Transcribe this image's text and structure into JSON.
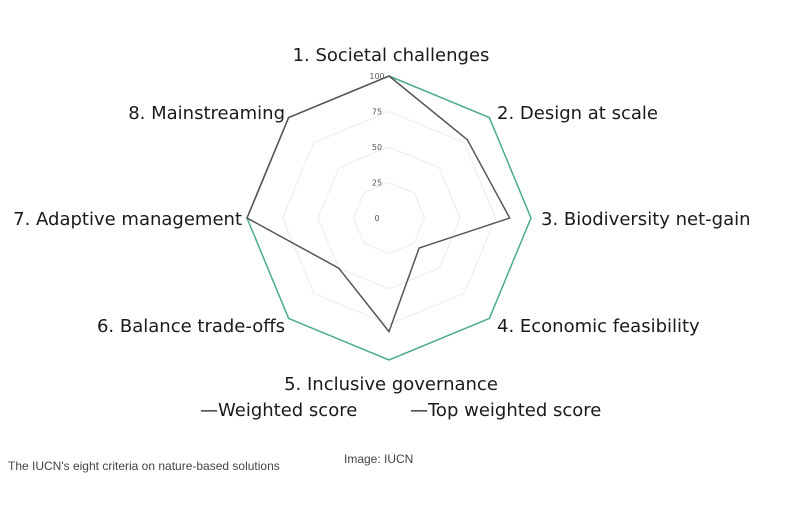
{
  "chart_data": {
    "type": "radar",
    "categories": [
      "1. Societal challenges",
      "2. Design at scale",
      "3. Biodiversity net-gain",
      "4. Economic feasibility",
      "5. Inclusive governance",
      "6. Balance trade-offs",
      "7. Adaptive management",
      "8. Mainstreaming"
    ],
    "radial_ticks": [
      "0",
      "25",
      "50",
      "75",
      "100"
    ],
    "rlim": [
      0,
      100
    ],
    "series": [
      {
        "name": "Weighted score",
        "legend_label": "—Weighted score",
        "color": "#555555",
        "values": [
          100,
          78,
          85,
          30,
          80,
          50,
          100,
          100
        ]
      },
      {
        "name": "Top weighted score",
        "legend_label": "—Top weighted score",
        "color": "#4aaa8e",
        "values": [
          100,
          100,
          100,
          100,
          100,
          100,
          100,
          100
        ]
      }
    ],
    "grid": true,
    "legend": "bottom"
  },
  "caption": "The IUCN's eight criteria on nature-based solutions",
  "credit": "Image: IUCN"
}
